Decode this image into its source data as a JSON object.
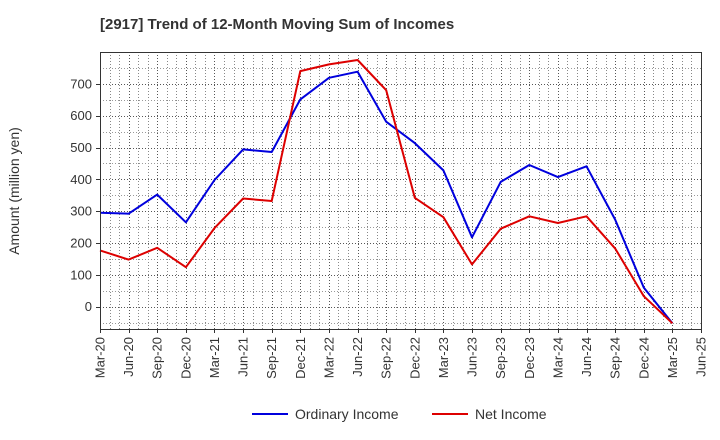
{
  "chart_data": {
    "type": "line",
    "title": "[2917]  Trend of 12-Month Moving Sum of Incomes",
    "xlabel": "",
    "ylabel": "Amount (million yen)",
    "ylim": [
      -70,
      800
    ],
    "yticks": [
      0,
      100,
      200,
      300,
      400,
      500,
      600,
      700
    ],
    "grid": true,
    "legend_position": "bottom-center",
    "categories": [
      "Mar-20",
      "Jun-20",
      "Sep-20",
      "Dec-20",
      "Mar-21",
      "Jun-21",
      "Sep-21",
      "Dec-21",
      "Mar-22",
      "Jun-22",
      "Sep-22",
      "Dec-22",
      "Mar-23",
      "Jun-23",
      "Sep-23",
      "Dec-23",
      "Mar-24",
      "Jun-24",
      "Sep-24",
      "Dec-24",
      "Mar-25",
      "Jun-25"
    ],
    "series": [
      {
        "name": "Ordinary Income",
        "color": "#0000dd",
        "values": [
          295,
          292,
          352,
          265,
          398,
          494,
          486,
          651,
          719,
          738,
          581,
          514,
          428,
          218,
          392,
          445,
          407,
          441,
          274,
          60,
          -52,
          null
        ]
      },
      {
        "name": "Net Income",
        "color": "#dd0000",
        "values": [
          177,
          148,
          185,
          124,
          247,
          340,
          332,
          740,
          761,
          775,
          680,
          342,
          281,
          133,
          245,
          284,
          263,
          284,
          183,
          33,
          -52,
          null
        ]
      }
    ]
  }
}
